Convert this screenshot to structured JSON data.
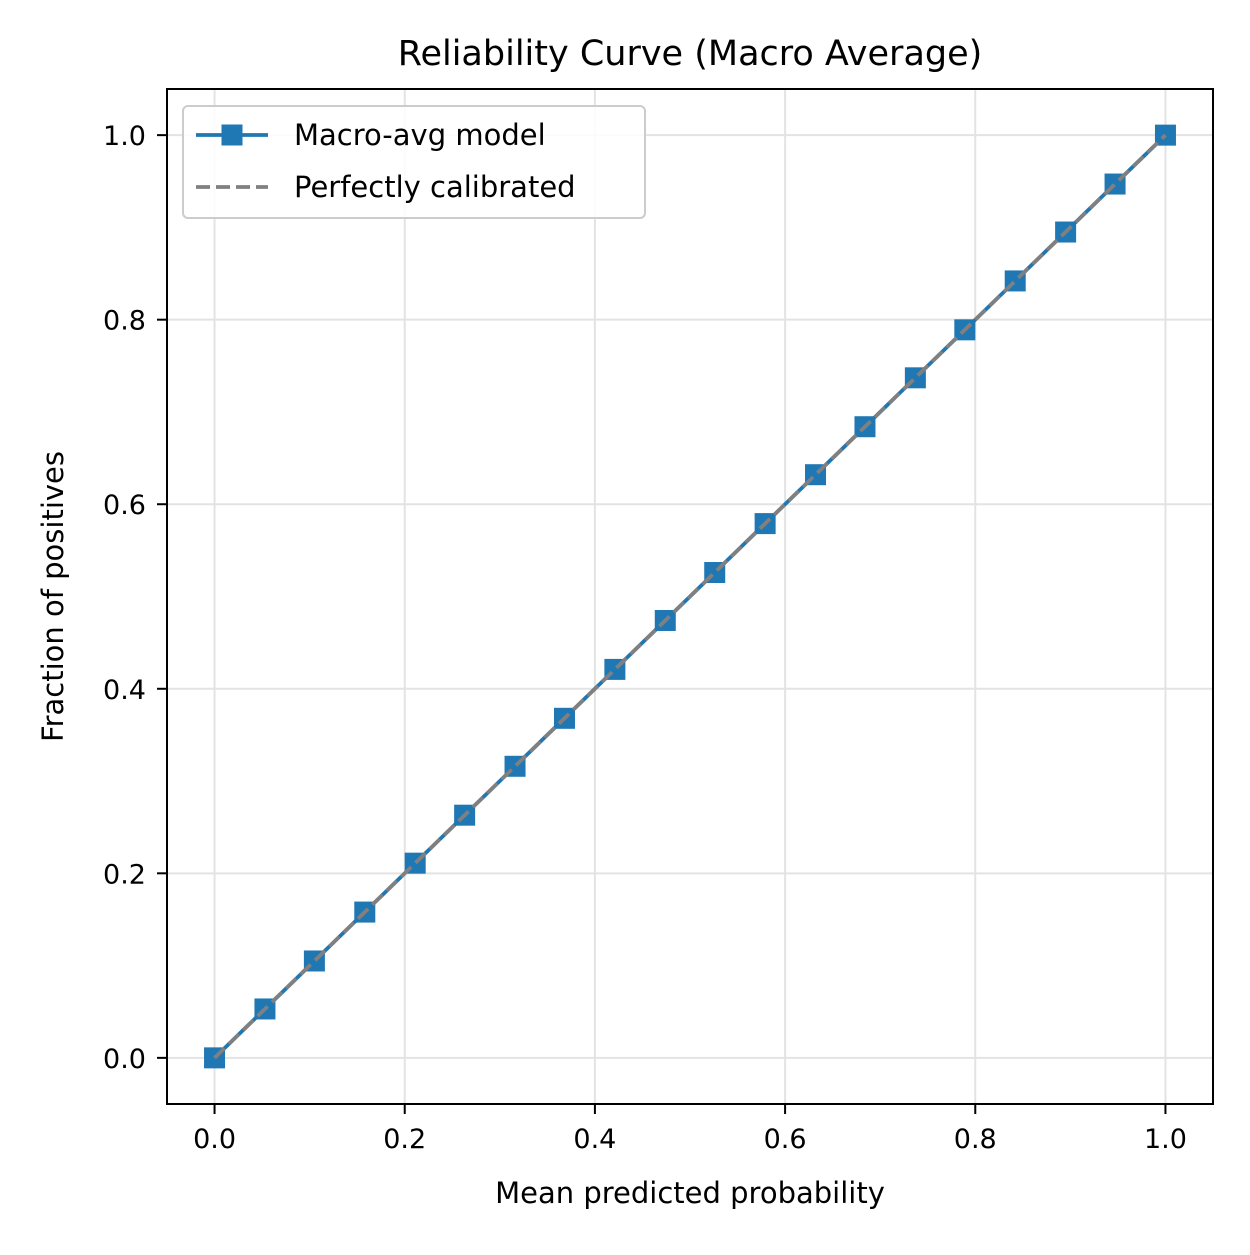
{
  "chart_data": {
    "type": "line",
    "title": "Reliability Curve (Macro Average)",
    "xlabel": "Mean predicted probability",
    "ylabel": "Fraction of positives",
    "xlim": [
      -0.05,
      1.05
    ],
    "ylim": [
      -0.05,
      1.05
    ],
    "xticks": [
      0.0,
      0.2,
      0.4,
      0.6,
      0.8,
      1.0
    ],
    "yticks": [
      0.0,
      0.2,
      0.4,
      0.6,
      0.8,
      1.0
    ],
    "xtick_labels": [
      "0.0",
      "0.2",
      "0.4",
      "0.6",
      "0.8",
      "1.0"
    ],
    "ytick_labels": [
      "0.0",
      "0.2",
      "0.4",
      "0.6",
      "0.8",
      "1.0"
    ],
    "grid": true,
    "legend_position": "upper-left",
    "series": [
      {
        "name": "Macro-avg model",
        "style": "solid",
        "marker": "square",
        "color": "#1f77b4",
        "x": [
          0.0,
          0.053,
          0.105,
          0.158,
          0.211,
          0.263,
          0.316,
          0.368,
          0.421,
          0.474,
          0.526,
          0.579,
          0.632,
          0.684,
          0.737,
          0.789,
          0.842,
          0.895,
          0.947,
          1.0
        ],
        "y": [
          0.0,
          0.053,
          0.105,
          0.158,
          0.211,
          0.263,
          0.316,
          0.368,
          0.421,
          0.474,
          0.526,
          0.579,
          0.632,
          0.684,
          0.737,
          0.789,
          0.842,
          0.895,
          0.947,
          1.0
        ]
      },
      {
        "name": "Perfectly calibrated",
        "style": "dashed",
        "marker": "none",
        "color": "#808080",
        "x": [
          0.0,
          1.0
        ],
        "y": [
          0.0,
          1.0
        ]
      }
    ]
  }
}
